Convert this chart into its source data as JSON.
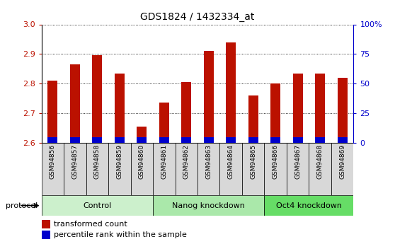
{
  "title": "GDS1824 / 1432334_at",
  "samples": [
    "GSM94856",
    "GSM94857",
    "GSM94858",
    "GSM94859",
    "GSM94860",
    "GSM94861",
    "GSM94862",
    "GSM94863",
    "GSM94864",
    "GSM94865",
    "GSM94866",
    "GSM94867",
    "GSM94868",
    "GSM94869"
  ],
  "red_values": [
    2.81,
    2.865,
    2.895,
    2.835,
    2.655,
    2.735,
    2.805,
    2.91,
    2.94,
    2.76,
    2.8,
    2.835,
    2.835,
    2.82
  ],
  "blue_values": [
    0.018,
    0.018,
    0.018,
    0.018,
    0.018,
    0.018,
    0.018,
    0.018,
    0.018,
    0.018,
    0.018,
    0.018,
    0.018,
    0.018
  ],
  "ylim": [
    2.6,
    3.0
  ],
  "yticks": [
    2.6,
    2.7,
    2.8,
    2.9,
    3.0
  ],
  "y2ticks_pct": [
    0,
    25,
    50,
    75,
    100
  ],
  "y2labels": [
    "0",
    "25",
    "50",
    "75",
    "100%"
  ],
  "red_color": "#bb1100",
  "blue_color": "#0000cc",
  "bar_width": 0.45,
  "groups": [
    {
      "label": "Control",
      "start": 0,
      "end": 5,
      "color": "#ccf0cc"
    },
    {
      "label": "Nanog knockdown",
      "start": 5,
      "end": 10,
      "color": "#aae8aa"
    },
    {
      "label": "Oct4 knockdown",
      "start": 10,
      "end": 14,
      "color": "#66dd66"
    }
  ],
  "protocol_label": "protocol",
  "legend_red": "transformed count",
  "legend_blue": "percentile rank within the sample",
  "plot_bg": "#ffffff",
  "label_box_bg": "#d8d8d8",
  "nanog_bg": "#f0f0f0"
}
